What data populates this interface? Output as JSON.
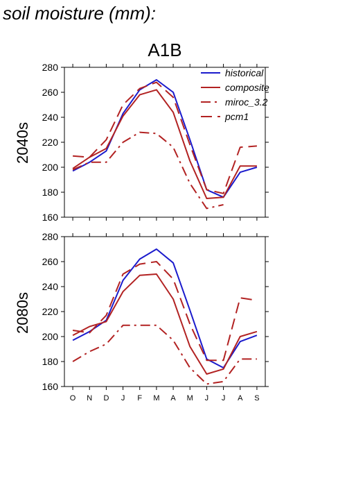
{
  "title": "soil moisture (mm):",
  "scenario": "A1B",
  "colors": {
    "historical": "#1a1acc",
    "model": "#b22222"
  },
  "chart_data": [
    {
      "type": "line",
      "row_label": "2040s",
      "categories": [
        "O",
        "N",
        "D",
        "J",
        "F",
        "M",
        "A",
        "M",
        "J",
        "J",
        "A",
        "S"
      ],
      "ylim": [
        160,
        280
      ],
      "yticks": [
        160,
        180,
        200,
        220,
        240,
        260,
        280
      ],
      "legend_position": "top-right",
      "series": [
        {
          "name": "historical",
          "style": "solid",
          "color": "#1a1acc",
          "values": [
            197,
            204,
            213,
            243,
            262,
            270,
            260,
            222,
            182,
            176,
            196,
            200
          ]
        },
        {
          "name": "composite",
          "style": "solid",
          "color": "#b22222",
          "values": [
            199,
            208,
            215,
            241,
            258,
            262,
            244,
            205,
            175,
            176,
            201,
            201
          ]
        },
        {
          "name": "miroc_3.2",
          "style": "dashdot",
          "color": "#b22222",
          "values": [
            198,
            204,
            204,
            220,
            228,
            227,
            216,
            187,
            167,
            170,
            null,
            null
          ]
        },
        {
          "name": "pcm1",
          "style": "longdash",
          "color": "#b22222",
          "values": [
            209,
            208,
            222,
            250,
            263,
            268,
            256,
            218,
            182,
            179,
            216,
            217
          ]
        }
      ]
    },
    {
      "type": "line",
      "row_label": "2080s",
      "categories": [
        "O",
        "N",
        "D",
        "J",
        "F",
        "M",
        "A",
        "M",
        "J",
        "J",
        "A",
        "S"
      ],
      "ylim": [
        160,
        280
      ],
      "yticks": [
        160,
        180,
        200,
        220,
        240,
        260,
        280
      ],
      "series": [
        {
          "name": "historical",
          "style": "solid",
          "color": "#1a1acc",
          "values": [
            197,
            204,
            213,
            245,
            262,
            270,
            259,
            221,
            182,
            175,
            196,
            201
          ]
        },
        {
          "name": "composite",
          "style": "solid",
          "color": "#b22222",
          "values": [
            201,
            208,
            212,
            236,
            249,
            250,
            230,
            192,
            170,
            174,
            200,
            204
          ]
        },
        {
          "name": "miroc_3.2",
          "style": "dashdot",
          "color": "#b22222",
          "values": [
            180,
            188,
            194,
            209,
            209,
            209,
            197,
            175,
            162,
            164,
            182,
            182
          ]
        },
        {
          "name": "pcm1",
          "style": "longdash",
          "color": "#b22222",
          "values": [
            205,
            203,
            217,
            250,
            258,
            260,
            246,
            210,
            181,
            181,
            231,
            229
          ]
        }
      ]
    }
  ]
}
